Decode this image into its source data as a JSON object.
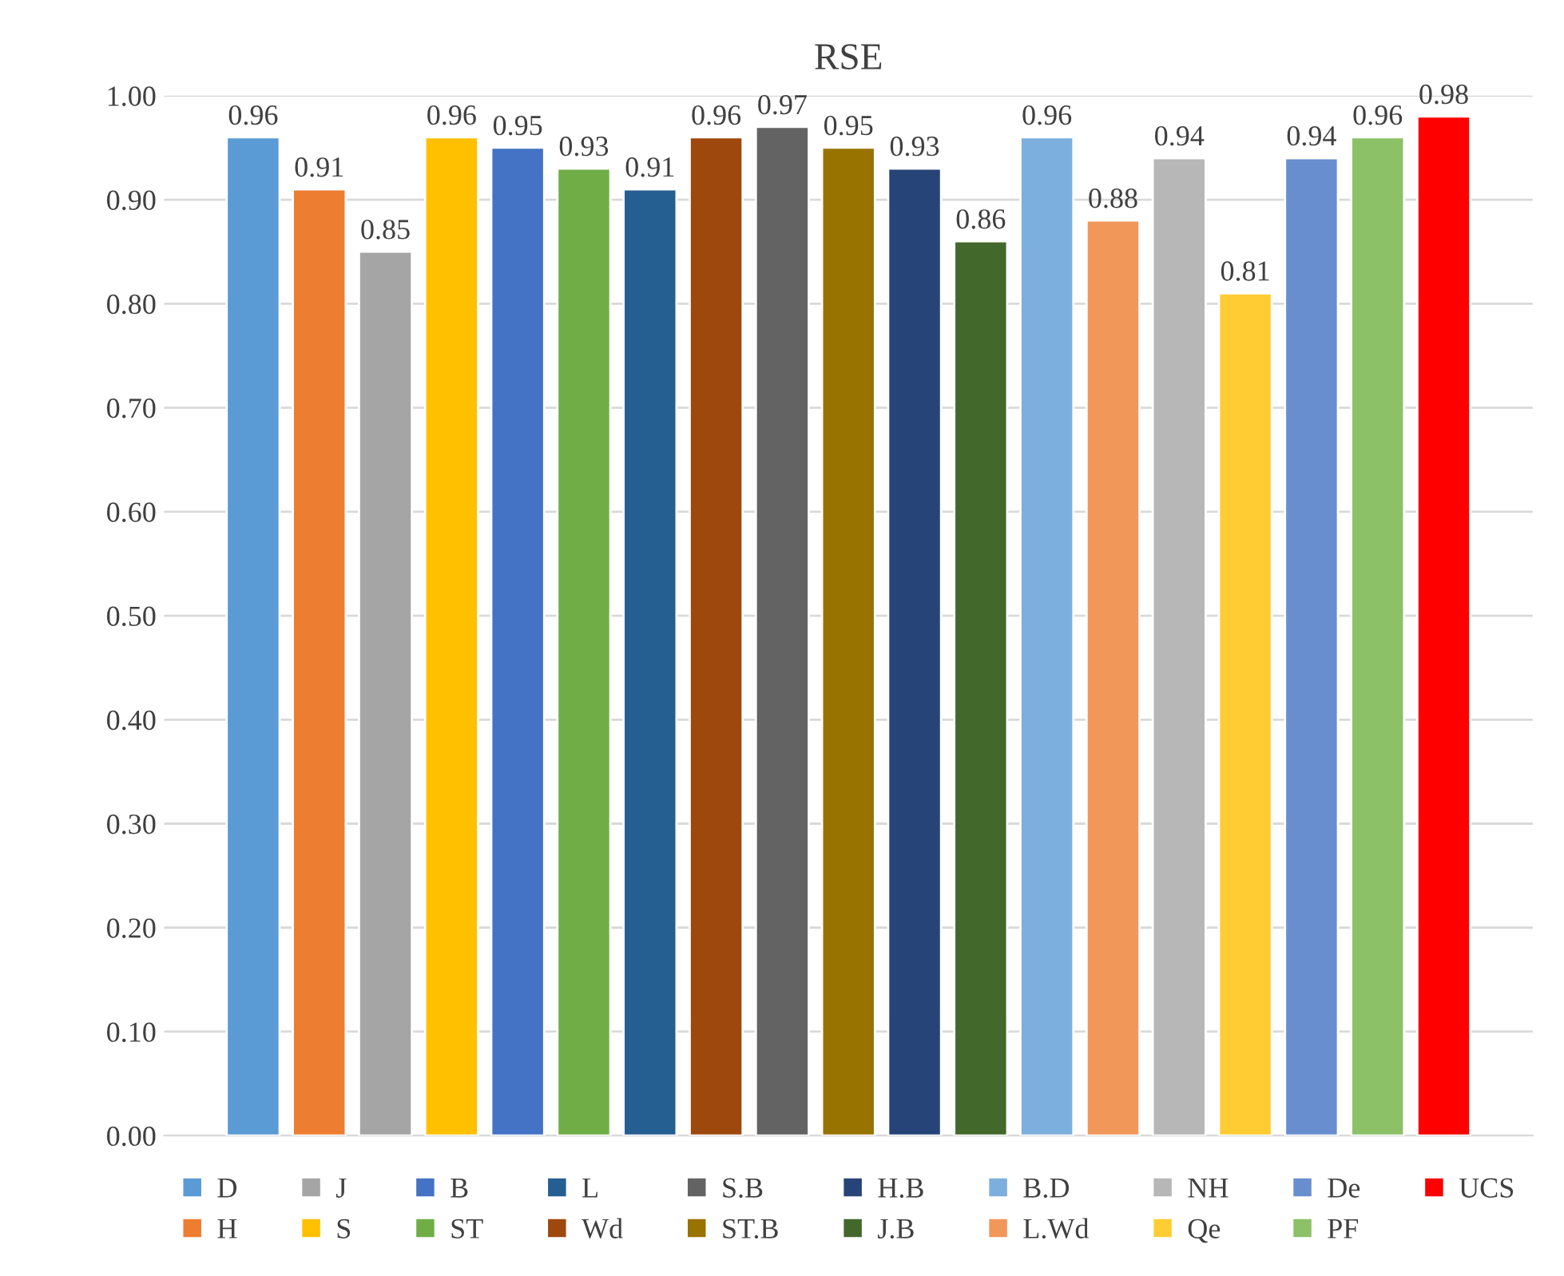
{
  "chart_data": {
    "type": "bar",
    "title": "RSE",
    "categories": [
      null
    ],
    "series": [
      {
        "name": "D",
        "color": "#5b9bd5",
        "values": [
          0.96
        ]
      },
      {
        "name": "H",
        "color": "#ed7d31",
        "values": [
          0.91
        ]
      },
      {
        "name": "J",
        "color": "#a5a5a5",
        "values": [
          0.85
        ]
      },
      {
        "name": "S",
        "color": "#ffc000",
        "values": [
          0.96
        ]
      },
      {
        "name": "B",
        "color": "#4472c4",
        "values": [
          0.95
        ]
      },
      {
        "name": "ST",
        "color": "#70ad47",
        "values": [
          0.93
        ]
      },
      {
        "name": "L",
        "color": "#255e91",
        "values": [
          0.91
        ]
      },
      {
        "name": "Wd",
        "color": "#9e480e",
        "values": [
          0.96
        ]
      },
      {
        "name": "S.B",
        "color": "#636363",
        "values": [
          0.97
        ]
      },
      {
        "name": "ST.B",
        "color": "#997300",
        "values": [
          0.95
        ]
      },
      {
        "name": "H.B",
        "color": "#264478",
        "values": [
          0.93
        ]
      },
      {
        "name": "J.B",
        "color": "#43682b",
        "values": [
          0.86
        ]
      },
      {
        "name": "B.D",
        "color": "#7cafdd",
        "values": [
          0.96
        ]
      },
      {
        "name": "L.Wd",
        "color": "#f1975a",
        "values": [
          0.88
        ]
      },
      {
        "name": "NH",
        "color": "#b7b7b7",
        "values": [
          0.94
        ]
      },
      {
        "name": "Qe",
        "color": "#ffcd33",
        "values": [
          0.81
        ]
      },
      {
        "name": "De",
        "color": "#698ed0",
        "values": [
          0.94
        ]
      },
      {
        "name": "PF",
        "color": "#8cc168",
        "values": [
          0.96
        ]
      },
      {
        "name": "UCS",
        "color": "#ff0000",
        "values": [
          0.98
        ]
      }
    ],
    "ylim": [
      0,
      1.0
    ],
    "yticks": [
      {
        "value": 0,
        "label": "0.00"
      },
      {
        "value": 0.1,
        "label": "0.10"
      },
      {
        "value": 0.2,
        "label": "0.20"
      },
      {
        "value": 0.3,
        "label": "0.30"
      },
      {
        "value": 0.4,
        "label": "0.40"
      },
      {
        "value": 0.5,
        "label": "0.50"
      },
      {
        "value": 0.6,
        "label": "0.60"
      },
      {
        "value": 0.7,
        "label": "0.70"
      },
      {
        "value": 0.8,
        "label": "0.80"
      },
      {
        "value": 0.9,
        "label": "0.90"
      },
      {
        "value": 1.0,
        "label": "1.00"
      }
    ],
    "grid": "y",
    "legend": "bottom",
    "data_labels": true
  }
}
